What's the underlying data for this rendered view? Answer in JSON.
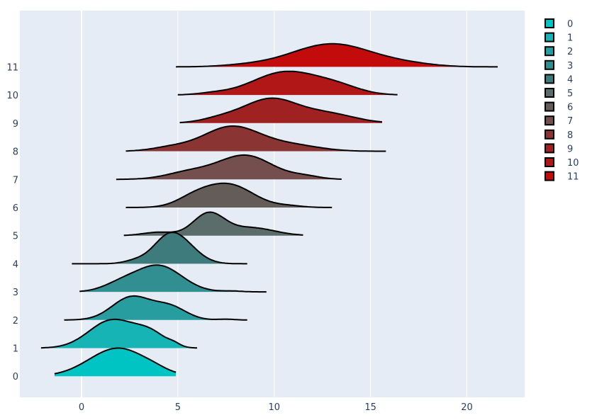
{
  "chart_data": {
    "type": "area",
    "title": "",
    "xlabel": "",
    "ylabel": "",
    "xlim": [
      -3.2,
      23.0
    ],
    "ylim": [
      -0.75,
      13.0
    ],
    "x_ticks": [
      0,
      5,
      10,
      15,
      20
    ],
    "y_ticks": [
      0,
      1,
      2,
      3,
      4,
      5,
      6,
      7,
      8,
      9,
      10,
      11
    ],
    "grid": true,
    "legend": "top-right",
    "plot_bg": "#e5ecf6",
    "line_color": "#000000",
    "series": [
      {
        "name": "0",
        "color": "#00c4c4",
        "offset": 0,
        "range": [
          -1.4,
          4.9
        ],
        "peaks": [
          [
            1.9,
            1.5,
            1.0
          ],
          [
            3.8,
            0.55,
            0.05
          ]
        ]
      },
      {
        "name": "1",
        "color": "#16b4b5",
        "offset": 1,
        "range": [
          -2.1,
          6.0
        ],
        "peaks": [
          [
            1.6,
            1.2,
            1.0
          ],
          [
            3.6,
            0.8,
            0.45
          ],
          [
            4.8,
            0.3,
            0.08
          ]
        ]
      },
      {
        "name": "2",
        "color": "#289d9f",
        "offset": 2,
        "range": [
          -0.9,
          8.6
        ],
        "peaks": [
          [
            2.6,
            1.0,
            0.82
          ],
          [
            4.6,
            0.85,
            0.45
          ],
          [
            7.5,
            0.4,
            0.03
          ]
        ]
      },
      {
        "name": "3",
        "color": "#318f91",
        "offset": 3,
        "range": [
          -0.1,
          9.6
        ],
        "peaks": [
          [
            4.0,
            1.2,
            0.93
          ],
          [
            2.0,
            0.9,
            0.25
          ],
          [
            7.8,
            0.5,
            0.03
          ]
        ]
      },
      {
        "name": "4",
        "color": "#3e7b7c",
        "offset": 4,
        "range": [
          -0.5,
          8.6
        ],
        "peaks": [
          [
            4.5,
            0.8,
            0.9
          ],
          [
            5.5,
            0.8,
            0.4
          ],
          [
            2.8,
            0.6,
            0.1
          ]
        ]
      },
      {
        "name": "5",
        "color": "#5a6d6b",
        "offset": 5,
        "range": [
          2.2,
          11.5
        ],
        "peaks": [
          [
            6.6,
            0.8,
            0.78
          ],
          [
            8.8,
            1.2,
            0.28
          ],
          [
            4.0,
            0.8,
            0.12
          ]
        ]
      },
      {
        "name": "6",
        "color": "#635c59",
        "offset": 6,
        "range": [
          2.3,
          13.0
        ],
        "peaks": [
          [
            7.6,
            1.3,
            0.82
          ],
          [
            5.8,
            0.9,
            0.25
          ],
          [
            10.8,
            0.7,
            0.05
          ]
        ]
      },
      {
        "name": "7",
        "color": "#754f4e",
        "offset": 7,
        "range": [
          1.8,
          13.5
        ],
        "peaks": [
          [
            8.5,
            1.4,
            0.85
          ],
          [
            5.6,
            1.2,
            0.25
          ],
          [
            11.6,
            0.8,
            0.1
          ]
        ]
      },
      {
        "name": "8",
        "color": "#8a3433",
        "offset": 8,
        "range": [
          2.3,
          15.8
        ],
        "peaks": [
          [
            7.8,
            1.5,
            0.88
          ],
          [
            4.6,
            1.0,
            0.12
          ],
          [
            11.0,
            1.4,
            0.2
          ]
        ]
      },
      {
        "name": "9",
        "color": "#a02121",
        "offset": 9,
        "range": [
          5.1,
          15.6
        ],
        "peaks": [
          [
            9.8,
            1.4,
            0.85
          ],
          [
            7.2,
            1.0,
            0.15
          ],
          [
            12.8,
            1.4,
            0.32
          ]
        ]
      },
      {
        "name": "10",
        "color": "#b11717",
        "offset": 10,
        "range": [
          5.0,
          16.4
        ],
        "peaks": [
          [
            10.6,
            1.7,
            0.82
          ],
          [
            13.3,
            1.2,
            0.25
          ],
          [
            6.8,
            0.8,
            0.05
          ]
        ]
      },
      {
        "name": "11",
        "color": "#c40b0b",
        "offset": 11,
        "range": [
          4.9,
          21.6
        ],
        "peaks": [
          [
            13.0,
            2.1,
            0.82
          ],
          [
            17.0,
            1.4,
            0.08
          ],
          [
            8.5,
            1.3,
            0.05
          ]
        ]
      }
    ]
  }
}
